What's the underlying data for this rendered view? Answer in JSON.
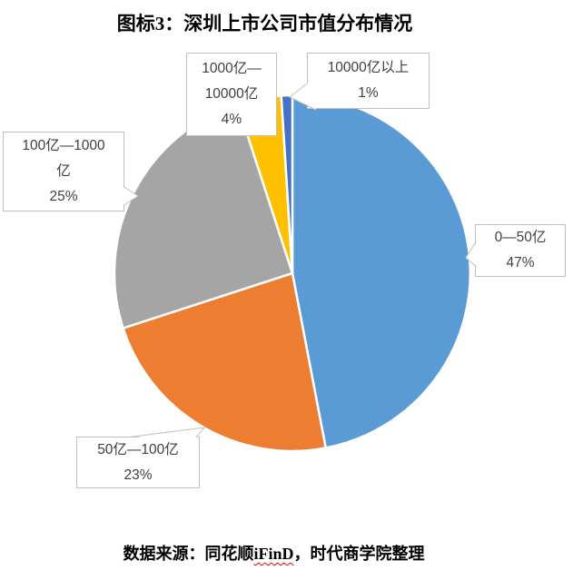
{
  "header": {
    "title": "图标3：深圳上市公司市值分布情况"
  },
  "footer": {
    "source_prefix": "数据来源：同花顺",
    "source_highlight": "iFinD",
    "source_suffix": "，时代商学院整理"
  },
  "chart_data": {
    "type": "pie",
    "title": "图标3：深圳上市公司市值分布情况",
    "categories": [
      "0—50亿",
      "50亿—100亿",
      "100亿—1000亿",
      "1000亿—10000亿",
      "10000亿以上"
    ],
    "values": [
      47,
      23,
      25,
      4,
      1
    ],
    "unit": "%",
    "colors": [
      "#5B9BD5",
      "#ED7D31",
      "#A5A5A5",
      "#FFC000",
      "#4472C4"
    ],
    "start_angle_deg": 0,
    "direction": "clockwise",
    "legend": "none",
    "label_style": "callout-boxes",
    "separator_color": "#ffffff",
    "callout_border_color": "#BFBFBF",
    "callout_text_color": "#404040",
    "labels": [
      {
        "category": "0—50亿",
        "lines": [
          "0—50亿",
          "47%"
        ]
      },
      {
        "category": "50亿—100亿",
        "lines": [
          "50亿—100亿",
          "23%"
        ]
      },
      {
        "category": "100亿—1000亿",
        "lines": [
          "100亿—1000",
          "亿",
          "25%"
        ]
      },
      {
        "category": "1000亿—10000亿",
        "lines": [
          "1000亿—",
          "10000亿",
          "4%"
        ]
      },
      {
        "category": "10000亿以上",
        "lines": [
          "10000亿以上",
          "1%"
        ]
      }
    ]
  }
}
